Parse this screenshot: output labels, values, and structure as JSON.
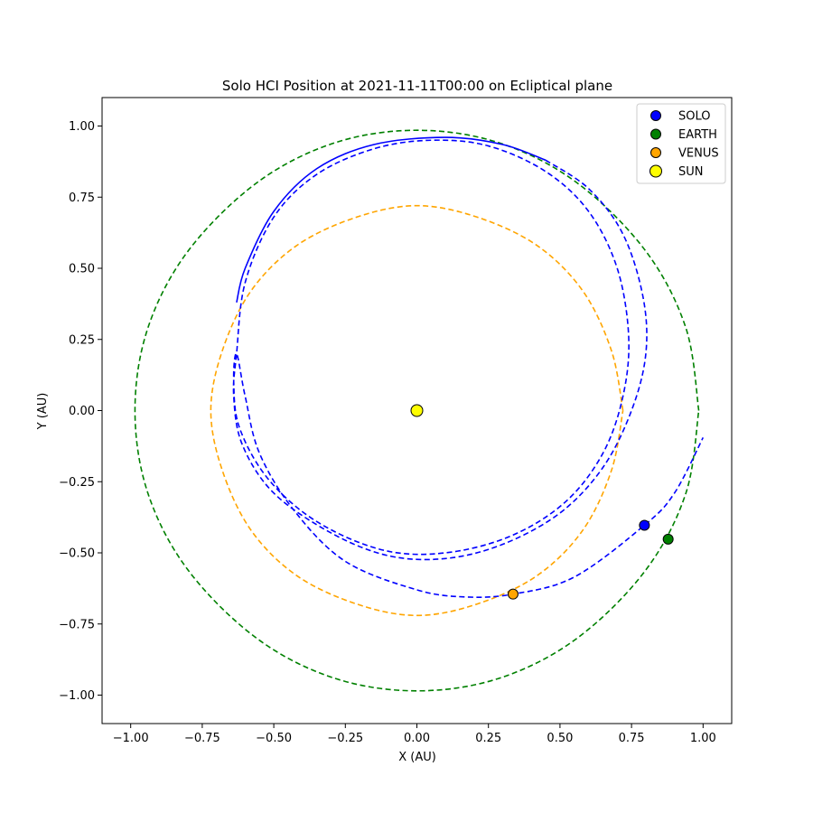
{
  "chart_data": {
    "type": "scatter",
    "title": "Solo HCI Position at 2021-11-11T00:00 on Ecliptical plane",
    "xlabel": "X (AU)",
    "ylabel": "Y (AU)",
    "xlim": [
      -1.1,
      1.1
    ],
    "ylim": [
      -1.1,
      1.1
    ],
    "x_ticks": [
      -1.0,
      -0.75,
      -0.5,
      -0.25,
      0.0,
      0.25,
      0.5,
      0.75,
      1.0
    ],
    "y_ticks": [
      -1.0,
      -0.75,
      -0.5,
      -0.25,
      0.0,
      0.25,
      0.5,
      0.75,
      1.0
    ],
    "x_tick_labels": [
      "−1.00",
      "−0.75",
      "−0.50",
      "−0.25",
      "0.00",
      "0.25",
      "0.50",
      "0.75",
      "1.00"
    ],
    "y_tick_labels": [
      "−1.00",
      "−0.75",
      "−0.50",
      "−0.25",
      "0.00",
      "0.25",
      "0.50",
      "0.75",
      "1.00"
    ],
    "grid": false,
    "legend_position": "top-right",
    "points": [
      {
        "name": "SOLO",
        "x": 0.795,
        "y": -0.403,
        "color": "#0000ff"
      },
      {
        "name": "EARTH",
        "x": 0.878,
        "y": -0.452,
        "color": "#008000"
      },
      {
        "name": "VENUS",
        "x": 0.336,
        "y": -0.645,
        "color": "#ffa500"
      },
      {
        "name": "SUN",
        "x": 0.0,
        "y": 0.0,
        "color": "#ffff00"
      }
    ],
    "orbits": [
      {
        "body": "EARTH",
        "color": "#008000",
        "style": "dashed",
        "points": [
          [
            0.985,
            0.0
          ],
          [
            0.94,
            0.29
          ],
          [
            0.8,
            0.56
          ],
          [
            0.56,
            0.8
          ],
          [
            0.29,
            0.94
          ],
          [
            0.0,
            0.985
          ],
          [
            -0.29,
            0.94
          ],
          [
            -0.56,
            0.8
          ],
          [
            -0.8,
            0.56
          ],
          [
            -0.94,
            0.29
          ],
          [
            -0.985,
            0.0
          ],
          [
            -0.94,
            -0.29
          ],
          [
            -0.8,
            -0.56
          ],
          [
            -0.56,
            -0.8
          ],
          [
            -0.29,
            -0.94
          ],
          [
            0.0,
            -0.985
          ],
          [
            0.29,
            -0.94
          ],
          [
            0.56,
            -0.8
          ],
          [
            0.8,
            -0.56
          ],
          [
            0.94,
            -0.29
          ],
          [
            0.985,
            0.0
          ]
        ]
      },
      {
        "body": "VENUS",
        "color": "#ffa500",
        "style": "dashed",
        "points": [
          [
            0.72,
            0.0
          ],
          [
            0.68,
            0.21
          ],
          [
            0.58,
            0.42
          ],
          [
            0.42,
            0.58
          ],
          [
            0.21,
            0.68
          ],
          [
            0.0,
            0.72
          ],
          [
            -0.21,
            0.68
          ],
          [
            -0.42,
            0.58
          ],
          [
            -0.58,
            0.42
          ],
          [
            -0.68,
            0.21
          ],
          [
            -0.72,
            0.0
          ],
          [
            -0.68,
            -0.21
          ],
          [
            -0.58,
            -0.42
          ],
          [
            -0.42,
            -0.58
          ],
          [
            -0.21,
            -0.68
          ],
          [
            0.0,
            -0.72
          ],
          [
            0.21,
            -0.68
          ],
          [
            0.42,
            -0.58
          ],
          [
            0.58,
            -0.42
          ],
          [
            0.68,
            -0.21
          ],
          [
            0.72,
            0.0
          ]
        ]
      },
      {
        "body": "SOLO",
        "color": "#0000ff",
        "style": "solid",
        "points": [
          [
            -0.63,
            0.38
          ],
          [
            -0.6,
            0.5
          ],
          [
            -0.5,
            0.7
          ],
          [
            -0.35,
            0.85
          ],
          [
            -0.15,
            0.935
          ],
          [
            0.1,
            0.96
          ],
          [
            0.3,
            0.935
          ],
          [
            0.45,
            0.88
          ]
        ]
      },
      {
        "body": "SOLO",
        "color": "#0000ff",
        "style": "dashed",
        "points": [
          [
            0.45,
            0.88
          ],
          [
            0.6,
            0.78
          ],
          [
            0.72,
            0.62
          ],
          [
            0.79,
            0.4
          ],
          [
            0.8,
            0.2
          ],
          [
            0.75,
            0.0
          ],
          [
            0.65,
            -0.2
          ],
          [
            0.5,
            -0.36
          ],
          [
            0.3,
            -0.47
          ],
          [
            0.1,
            -0.52
          ],
          [
            -0.1,
            -0.51
          ],
          [
            -0.3,
            -0.43
          ],
          [
            -0.5,
            -0.29
          ],
          [
            -0.61,
            -0.12
          ],
          [
            -0.64,
            0.05
          ],
          [
            -0.63,
            0.2
          ],
          [
            -0.6,
            0.45
          ],
          [
            -0.5,
            0.68
          ],
          [
            -0.35,
            0.83
          ],
          [
            -0.15,
            0.92
          ],
          [
            0.05,
            0.95
          ],
          [
            0.25,
            0.93
          ],
          [
            0.45,
            0.84
          ],
          [
            0.6,
            0.7
          ],
          [
            0.7,
            0.5
          ],
          [
            0.74,
            0.26
          ],
          [
            0.72,
            0.05
          ],
          [
            0.65,
            -0.15
          ],
          [
            0.52,
            -0.32
          ],
          [
            0.33,
            -0.44
          ],
          [
            0.1,
            -0.5
          ],
          [
            -0.12,
            -0.49
          ],
          [
            -0.35,
            -0.39
          ],
          [
            -0.52,
            -0.24
          ],
          [
            -0.62,
            -0.06
          ],
          [
            -0.64,
            0.1
          ],
          [
            -0.63,
            0.2
          ],
          [
            -0.6,
            0.05
          ],
          [
            -0.55,
            -0.15
          ],
          [
            -0.43,
            -0.35
          ],
          [
            -0.25,
            -0.53
          ],
          [
            0.0,
            -0.63
          ],
          [
            0.17,
            -0.655
          ],
          [
            0.336,
            -0.645
          ],
          [
            0.55,
            -0.585
          ],
          [
            0.795,
            -0.403
          ],
          [
            0.9,
            -0.29
          ],
          [
            1.0,
            -0.095
          ]
        ]
      }
    ]
  }
}
